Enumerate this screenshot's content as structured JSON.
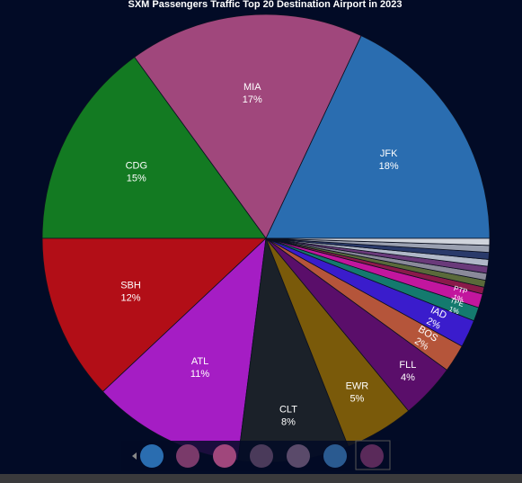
{
  "chart_data": {
    "type": "pie",
    "title": "SXM Passengers Traffic Top 20 Destination Airport in 2023",
    "categories": [
      "JFK",
      "MIA",
      "CDG",
      "SBH",
      "ATL",
      "CLT",
      "EWR",
      "FLL",
      "BOS",
      "IAD",
      "TPE",
      "PTP",
      null,
      null,
      null,
      null,
      null,
      null,
      null,
      null
    ],
    "values": [
      18,
      17,
      15,
      12,
      11,
      8,
      5,
      4,
      2,
      2,
      1,
      1,
      0.5,
      0.5,
      0.5,
      0.5,
      0.5,
      0.5,
      0.5,
      0.5
    ],
    "value_labels": [
      "18%",
      "17%",
      "15%",
      "12%",
      "11%",
      "8%",
      "5%",
      "4%",
      "2%",
      "2%",
      "1%",
      "1%",
      null,
      null,
      null,
      null,
      null,
      null,
      null,
      null
    ],
    "colors": [
      "#2a6db0",
      "#a0477c",
      "#137a22",
      "#b20e17",
      "#a51dc4",
      "#1b2129",
      "#7a5a0a",
      "#5a0e6a",
      "#b5553a",
      "#3a1ccc",
      "#147a6e",
      "#c2169e",
      "#8a1a4a",
      "#5a6a3a",
      "#8a8a9a",
      "#6a3a7a",
      "#b0b8c8",
      "#2a3a6a",
      "#9aa0b0",
      "#d0d4dc"
    ]
  }
}
